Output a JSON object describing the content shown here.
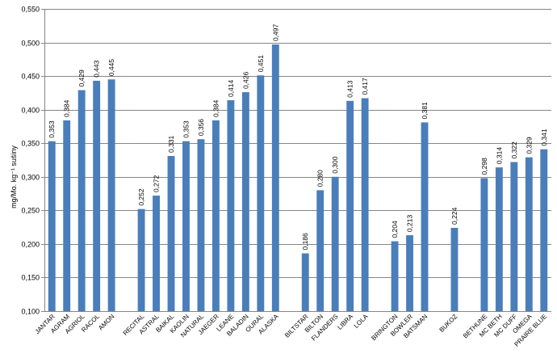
{
  "chart_data": {
    "type": "bar",
    "title": "",
    "xlabel": "",
    "ylabel": "mg/Mo. kg⁻¹ sušiny",
    "ylim": [
      0.1,
      0.55
    ],
    "ytick_step": 0.05,
    "yticks": [
      "0,100",
      "0,150",
      "0,200",
      "0,250",
      "0,300",
      "0,350",
      "0,400",
      "0,450",
      "0,500",
      "0,550"
    ],
    "grid": true,
    "legend": "none",
    "bar_color": "#4a7ebb",
    "categories": [
      "JANTAR",
      "AGRAM",
      "AGRIOL",
      "RACOL",
      "AMON",
      "",
      "RECITAL",
      "ASTRAL",
      "BAIKAL",
      "KAOLIN",
      "NATURAL",
      "JAEGER",
      "LEANE",
      "BALADIN",
      "OURAL",
      "ALASKA",
      "",
      "BILTSTAR",
      "BILTON",
      "FLANDERS",
      "LIBRA",
      "LOLA",
      "",
      "BRINGTON",
      "BOWLER",
      "BATSMAN",
      "",
      "BUKOZ",
      "",
      "BETHUNE",
      "MC BETH",
      "MC DUFF",
      "OMEGA",
      "PRAIRE BLUE"
    ],
    "values": [
      0.353,
      0.384,
      0.429,
      0.443,
      0.445,
      null,
      0.252,
      0.272,
      0.331,
      0.353,
      0.356,
      0.384,
      0.414,
      0.426,
      0.451,
      0.497,
      null,
      0.186,
      0.28,
      0.3,
      0.413,
      0.417,
      null,
      0.204,
      0.213,
      0.381,
      null,
      0.224,
      null,
      0.298,
      0.314,
      0.322,
      0.329,
      0.341
    ],
    "data_labels": [
      "0,353",
      "0,384",
      "0,429",
      "0,443",
      "0,445",
      "",
      "0,252",
      "0,272",
      "0,331",
      "0,353",
      "0,356",
      "0,384",
      "0,414",
      "0,426",
      "0,451",
      "0,497",
      "",
      "0,186",
      "0,280",
      "0,300",
      "0,413",
      "0,417",
      "",
      "0,204",
      "0,213",
      "0,381",
      "",
      "0,224",
      "",
      "0,298",
      "0,314",
      "0,322",
      "0,329",
      "0,341"
    ]
  }
}
